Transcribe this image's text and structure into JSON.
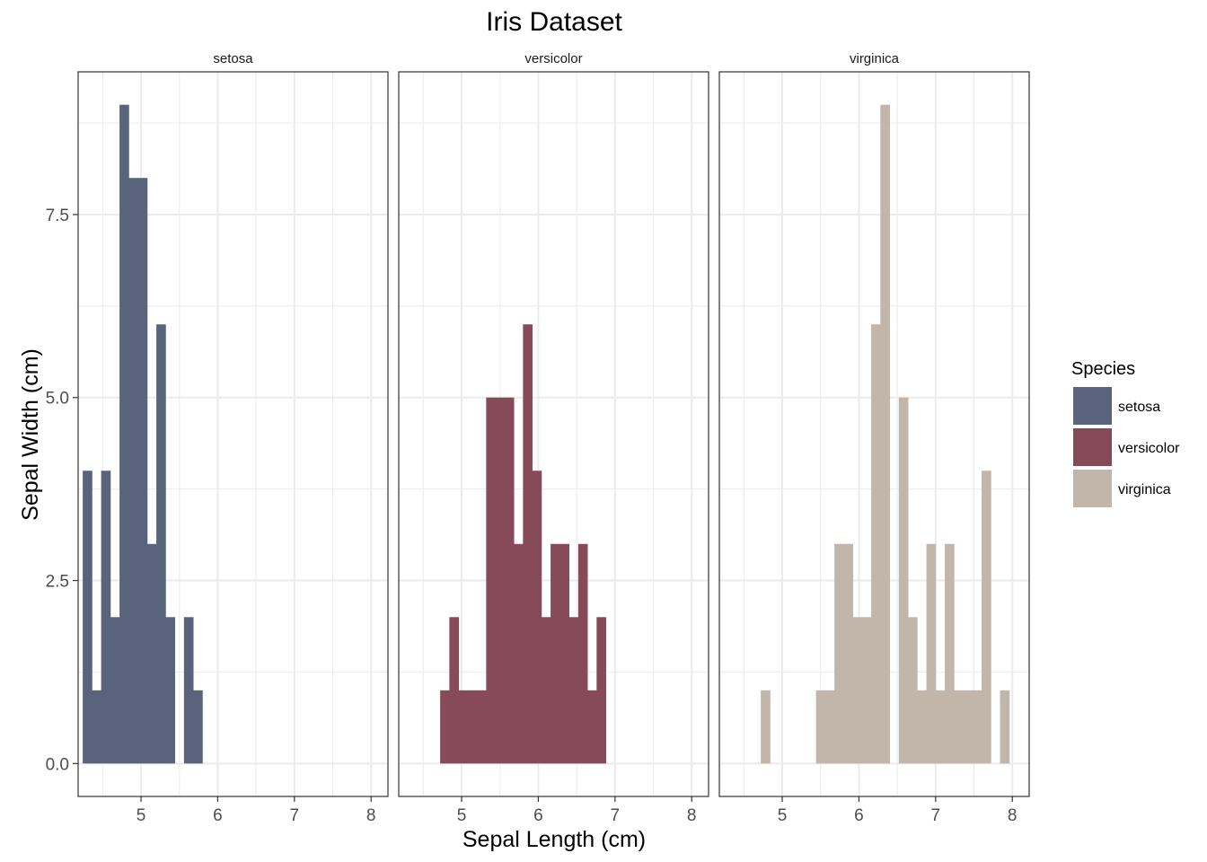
{
  "chart_data": {
    "type": "bar",
    "title": "Iris Dataset",
    "xlabel": "Sepal Length (cm)",
    "ylabel": "Sepal Width (cm)",
    "xlim": [
      4.18,
      8.22
    ],
    "ylim": [
      -0.45,
      9.45
    ],
    "x_ticks": [
      5,
      6,
      7,
      8
    ],
    "y_ticks": [
      0,
      2.5,
      5,
      7.5
    ],
    "y_tick_labels": [
      "0.0",
      "2.5",
      "5.0",
      "7.5"
    ],
    "bin_width": 0.12,
    "grid": true,
    "legend": {
      "title": "Species",
      "position": "right"
    },
    "series": [
      {
        "name": "setosa",
        "color": "#5a637c",
        "bins": [
          {
            "x": 4.3,
            "count": 4
          },
          {
            "x": 4.42,
            "count": 1
          },
          {
            "x": 4.54,
            "count": 4
          },
          {
            "x": 4.66,
            "count": 2
          },
          {
            "x": 4.78,
            "count": 9
          },
          {
            "x": 4.9,
            "count": 8
          },
          {
            "x": 5.02,
            "count": 8
          },
          {
            "x": 5.14,
            "count": 3
          },
          {
            "x": 5.26,
            "count": 6
          },
          {
            "x": 5.38,
            "count": 2
          },
          {
            "x": 5.5,
            "count": 0
          },
          {
            "x": 5.62,
            "count": 2
          },
          {
            "x": 5.74,
            "count": 1
          }
        ]
      },
      {
        "name": "versicolor",
        "color": "#874a58",
        "bins": [
          {
            "x": 4.78,
            "count": 1
          },
          {
            "x": 4.9,
            "count": 2
          },
          {
            "x": 5.02,
            "count": 1
          },
          {
            "x": 5.14,
            "count": 1
          },
          {
            "x": 5.26,
            "count": 1
          },
          {
            "x": 5.38,
            "count": 5
          },
          {
            "x": 5.5,
            "count": 5
          },
          {
            "x": 5.62,
            "count": 5
          },
          {
            "x": 5.74,
            "count": 3
          },
          {
            "x": 5.86,
            "count": 6
          },
          {
            "x": 5.98,
            "count": 4
          },
          {
            "x": 6.1,
            "count": 2
          },
          {
            "x": 6.22,
            "count": 3
          },
          {
            "x": 6.34,
            "count": 3
          },
          {
            "x": 6.46,
            "count": 2
          },
          {
            "x": 6.58,
            "count": 3
          },
          {
            "x": 6.7,
            "count": 1
          },
          {
            "x": 6.82,
            "count": 2
          }
        ]
      },
      {
        "name": "virginica",
        "color": "#c1b6a9",
        "bins": [
          {
            "x": 4.78,
            "count": 1
          },
          {
            "x": 5.5,
            "count": 1
          },
          {
            "x": 5.62,
            "count": 1
          },
          {
            "x": 5.74,
            "count": 3
          },
          {
            "x": 5.86,
            "count": 3
          },
          {
            "x": 5.98,
            "count": 2
          },
          {
            "x": 6.1,
            "count": 2
          },
          {
            "x": 6.22,
            "count": 6
          },
          {
            "x": 6.34,
            "count": 9
          },
          {
            "x": 6.46,
            "count": 0
          },
          {
            "x": 6.58,
            "count": 5
          },
          {
            "x": 6.7,
            "count": 2
          },
          {
            "x": 6.82,
            "count": 1
          },
          {
            "x": 6.94,
            "count": 3
          },
          {
            "x": 7.06,
            "count": 1
          },
          {
            "x": 7.18,
            "count": 3
          },
          {
            "x": 7.3,
            "count": 1
          },
          {
            "x": 7.42,
            "count": 1
          },
          {
            "x": 7.54,
            "count": 1
          },
          {
            "x": 7.66,
            "count": 4
          },
          {
            "x": 7.78,
            "count": 0
          },
          {
            "x": 7.9,
            "count": 1
          }
        ]
      }
    ]
  }
}
